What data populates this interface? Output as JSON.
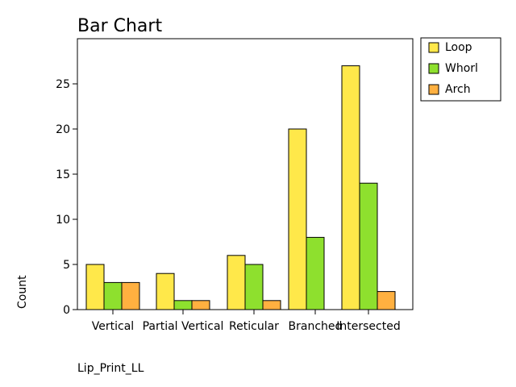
{
  "chart_data": {
    "type": "bar",
    "title": "Bar Chart",
    "xlabel": "Lip_Print_LL",
    "ylabel": "Count",
    "categories": [
      "Vertical",
      "Partial Vertical",
      "Reticular",
      "Branched",
      "Intersected"
    ],
    "series": [
      {
        "name": "Loop",
        "color": "#ffe84a",
        "values": [
          5,
          4,
          6,
          20,
          27
        ]
      },
      {
        "name": "Whorl",
        "color": "#8ee02e",
        "values": [
          3,
          1,
          5,
          8,
          14
        ]
      },
      {
        "name": "Arch",
        "color": "#ffb040",
        "values": [
          3,
          1,
          1,
          0,
          2
        ]
      }
    ],
    "ylim": [
      0,
      30
    ],
    "yticks": [
      0,
      5,
      10,
      15,
      20,
      25
    ],
    "grid": false,
    "legend": "top-right outside"
  }
}
